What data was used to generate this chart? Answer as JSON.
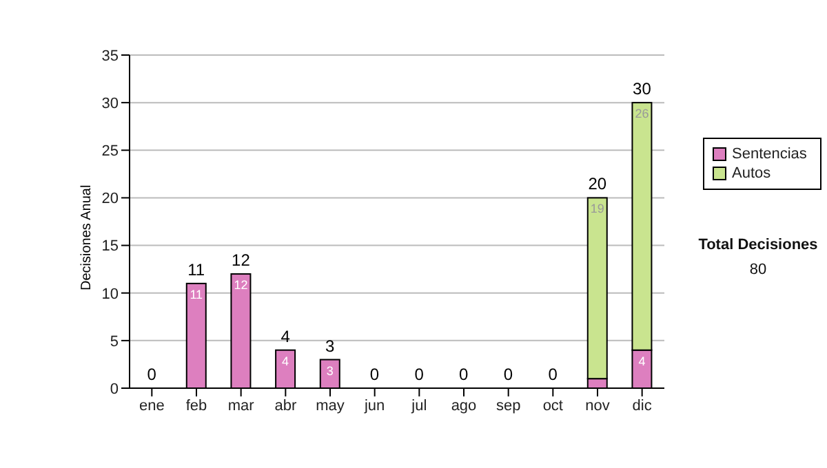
{
  "chart_data": {
    "type": "bar",
    "stacked": true,
    "ylabel": "Decisiones Anual",
    "categories": [
      "ene",
      "feb",
      "mar",
      "abr",
      "may",
      "jun",
      "jul",
      "ago",
      "sep",
      "oct",
      "nov",
      "dic"
    ],
    "series": [
      {
        "name": "Sentencias",
        "color": "#dd7fbf",
        "values": [
          0,
          11,
          12,
          4,
          3,
          0,
          0,
          0,
          0,
          0,
          1,
          4
        ],
        "value_labels": [
          null,
          "11",
          "12",
          "4",
          "3",
          null,
          null,
          null,
          null,
          null,
          null,
          "4"
        ]
      },
      {
        "name": "Autos",
        "color": "#c9e48f",
        "values": [
          0,
          0,
          0,
          0,
          0,
          0,
          0,
          0,
          0,
          0,
          19,
          26
        ],
        "value_labels": [
          null,
          null,
          null,
          null,
          null,
          null,
          null,
          null,
          null,
          null,
          "19",
          "26"
        ]
      }
    ],
    "totals": [
      "0",
      "11",
      "12",
      "4",
      "3",
      "0",
      "0",
      "0",
      "0",
      "0",
      "20",
      "30"
    ],
    "ylim": [
      0,
      35
    ],
    "yticks": [
      0,
      5,
      10,
      15,
      20,
      25,
      30,
      35
    ],
    "grid": "y",
    "legend": "right",
    "annotations": [
      "Total Decisiones",
      "80"
    ]
  }
}
